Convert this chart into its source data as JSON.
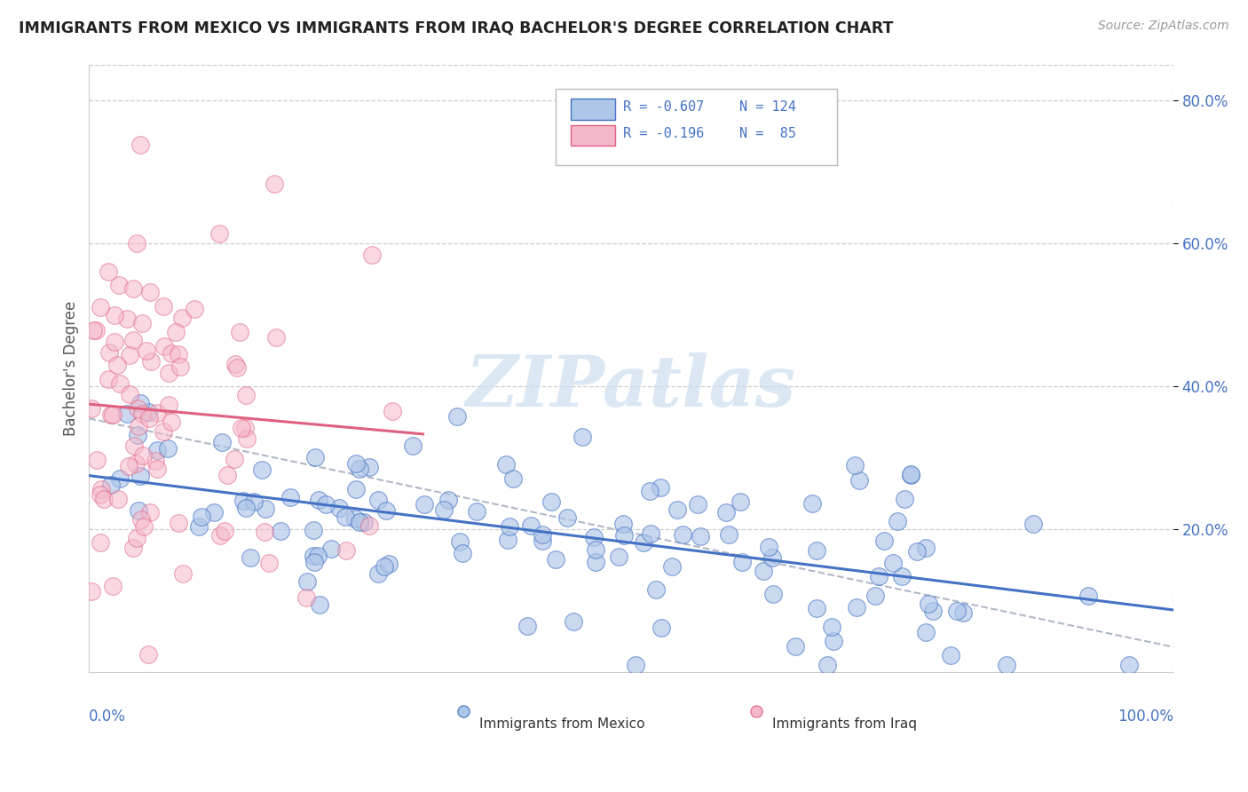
{
  "title": "IMMIGRANTS FROM MEXICO VS IMMIGRANTS FROM IRAQ BACHELOR'S DEGREE CORRELATION CHART",
  "source": "Source: ZipAtlas.com",
  "ylabel": "Bachelor's Degree",
  "watermark": "ZIPatlas",
  "xlim": [
    0.0,
    1.0
  ],
  "ylim": [
    0.0,
    0.85
  ],
  "yticks": [
    0.2,
    0.4,
    0.6,
    0.8
  ],
  "ytick_labels": [
    "20.0%",
    "40.0%",
    "60.0%",
    "80.0%"
  ],
  "blue_fill": "#aec6e8",
  "blue_edge": "#4472c4",
  "pink_fill": "#f5b8cb",
  "pink_edge": "#e06080",
  "bg_color": "#ffffff",
  "grid_color": "#cccccc",
  "title_color": "#222222",
  "label_color": "#555555",
  "r_mexico": -0.607,
  "r_iraq": -0.196,
  "n_mexico": 124,
  "n_iraq": 85,
  "legend_r1_text": "R = -0.607",
  "legend_n1_text": "N = 124",
  "legend_r2_text": "R = -0.196",
  "legend_n2_text": "N =  85"
}
